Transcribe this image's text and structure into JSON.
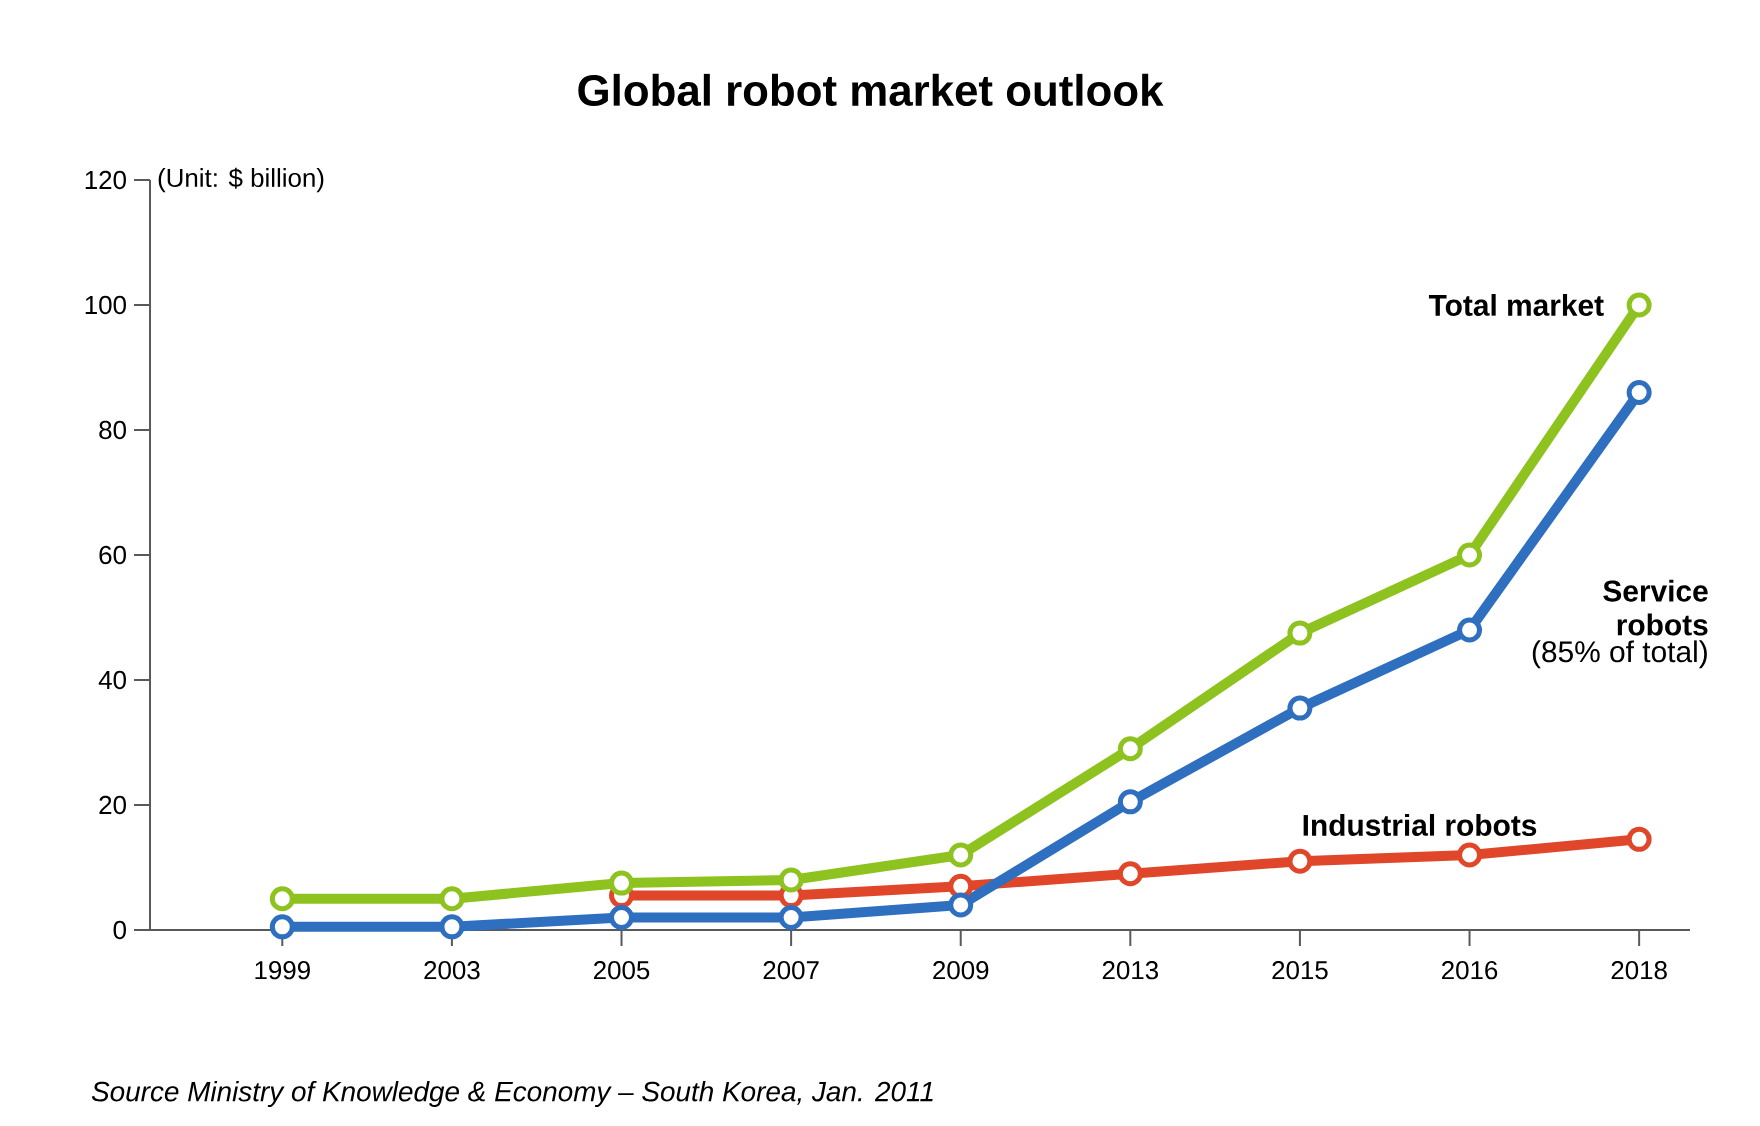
{
  "chart_data": {
    "type": "line",
    "title": "Global robot market outlook",
    "ylabel": "(Unit: $ billion)",
    "categories": [
      "1999",
      "2003",
      "2005",
      "2007",
      "2009",
      "2013",
      "2015",
      "2016",
      "2018"
    ],
    "series": [
      {
        "name": "Total market",
        "color": "#8dc21f",
        "values": [
          5,
          5,
          7.5,
          8,
          12,
          29,
          47.5,
          60,
          100
        ]
      },
      {
        "name": "Service robots",
        "color": "#2f6fbf",
        "values": [
          0.5,
          0.5,
          2,
          2,
          4,
          20.5,
          35.5,
          48,
          86
        ]
      },
      {
        "name": "Industrial robots",
        "color": "#e0472a",
        "values": [
          null,
          null,
          5.5,
          5.5,
          7,
          9,
          11,
          12,
          14.5
        ]
      }
    ],
    "ylim": [
      0,
      120
    ],
    "yticks": [
      0,
      20,
      40,
      60,
      80,
      100,
      120
    ],
    "annotations": [
      "(85% of total)",
      "Source Ministry of Knowledge & Economy – South Korea, Jan. 2011"
    ],
    "grid": false,
    "marker": "circle",
    "line_style": "solid"
  }
}
